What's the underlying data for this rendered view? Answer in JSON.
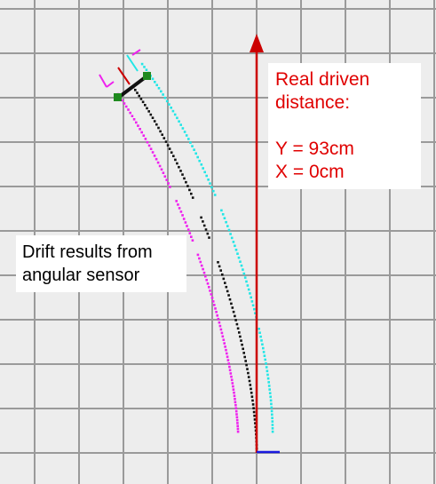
{
  "distance_panel": {
    "line1": "Real driven",
    "line2": "distance:",
    "line3": "Y = 93cm",
    "line4": "X = 0cm"
  },
  "drift_panel": {
    "line1": "Drift results from",
    "line2": "angular sensor"
  },
  "colors": {
    "background": "#ededed",
    "grid": "#9a9a9a",
    "real_path": "#cc0000",
    "x_axis": "#1a1adf",
    "center_path": "#111111",
    "left_wheel_path": "#ee22ee",
    "right_wheel_path": "#22e6e6",
    "robot_body": "#111111",
    "robot_wheel": "#1f8a1f"
  },
  "icons": {
    "real_path_arrow": "arrow-up-icon",
    "robot": "robot-icon"
  }
}
